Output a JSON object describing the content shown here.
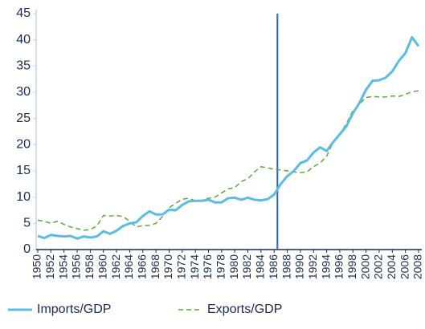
{
  "chart_data": {
    "type": "line",
    "x": [
      1950,
      1951,
      1952,
      1953,
      1954,
      1955,
      1956,
      1957,
      1958,
      1959,
      1960,
      1961,
      1962,
      1963,
      1964,
      1965,
      1966,
      1967,
      1968,
      1969,
      1970,
      1971,
      1972,
      1973,
      1974,
      1975,
      1976,
      1977,
      1978,
      1979,
      1980,
      1981,
      1982,
      1983,
      1984,
      1985,
      1986,
      1987,
      1988,
      1989,
      1990,
      1991,
      1992,
      1993,
      1994,
      1995,
      1996,
      1997,
      1998,
      1999,
      2000,
      2001,
      2002,
      2003,
      2004,
      2005,
      2006,
      2007,
      2008
    ],
    "series": [
      {
        "name": "Imports/GDP",
        "color": "#5bbce4",
        "dashed": false,
        "values": [
          2.6,
          2.2,
          2.8,
          2.6,
          2.5,
          2.6,
          2.1,
          2.5,
          2.3,
          2.5,
          3.5,
          3.0,
          3.6,
          4.5,
          5.0,
          5.2,
          6.4,
          7.3,
          6.7,
          6.7,
          7.6,
          7.5,
          8.5,
          9.2,
          9.3,
          9.3,
          9.5,
          9.0,
          9.0,
          9.8,
          9.9,
          9.5,
          9.9,
          9.5,
          9.4,
          9.6,
          10.5,
          12.5,
          14.0,
          15.0,
          16.5,
          17.0,
          18.5,
          19.5,
          18.8,
          20.5,
          22.0,
          23.5,
          26.0,
          28.0,
          30.5,
          32.2,
          32.3,
          32.8,
          34.0,
          36.0,
          37.5,
          40.5,
          38.8
        ]
      },
      {
        "name": "Exports/GDP",
        "color": "#5aaa3c",
        "dashed": true,
        "values": [
          5.6,
          5.4,
          5.0,
          5.4,
          4.8,
          4.3,
          4.0,
          3.7,
          3.8,
          4.5,
          6.5,
          6.4,
          6.5,
          6.3,
          5.4,
          4.3,
          4.6,
          4.6,
          5.0,
          6.3,
          8.0,
          8.8,
          9.6,
          9.8,
          9.3,
          9.4,
          9.8,
          10.0,
          10.8,
          11.6,
          11.8,
          13.0,
          13.5,
          14.8,
          15.8,
          15.6,
          15.3,
          15.2,
          15.0,
          14.8,
          14.7,
          14.8,
          15.8,
          16.5,
          17.8,
          20.5,
          22.0,
          24.0,
          26.5,
          27.8,
          29.0,
          29.2,
          29.1,
          29.1,
          29.3,
          29.2,
          29.6,
          30.1,
          30.3
        ]
      }
    ],
    "xlim": [
      1950,
      2008
    ],
    "xticks": [
      1950,
      1952,
      1954,
      1956,
      1958,
      1960,
      1962,
      1964,
      1966,
      1968,
      1970,
      1972,
      1974,
      1976,
      1978,
      1980,
      1982,
      1984,
      1986,
      1988,
      1990,
      1992,
      1994,
      1996,
      1998,
      2000,
      2002,
      2004,
      2006,
      2008
    ],
    "ylim": [
      0,
      45
    ],
    "yticks": [
      0,
      5,
      10,
      15,
      20,
      25,
      30,
      35,
      40,
      45
    ],
    "vline_x": 1986.5,
    "vline_color": "#2a6aa8",
    "legend": "bottom"
  }
}
